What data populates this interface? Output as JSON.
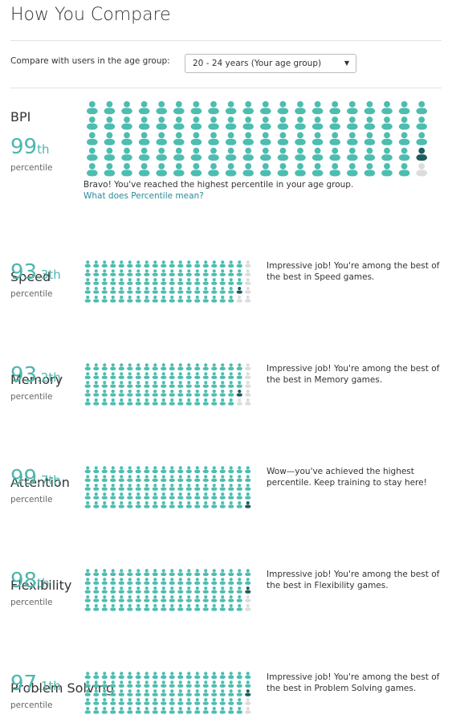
{
  "header": {
    "title": "How You Compare"
  },
  "compare": {
    "label": "Compare with users in the age group:",
    "selected": "20 - 24 years (Your age group)",
    "arrow": "▼"
  },
  "sections": [
    {
      "name": "BPI",
      "value": 99,
      "suffix": "th",
      "unit": "percentile",
      "message": "Bravo! You've reached the highest percentile in your age group.",
      "link": "What does Percentile mean?"
    },
    {
      "name": "Speed",
      "value": 93.3,
      "suffix": "th",
      "unit": "percentile",
      "message": "Impressive job! You're among the best of the best in Speed games."
    },
    {
      "name": "Memory",
      "value": 93.2,
      "suffix": "th",
      "unit": "percentile",
      "message": "Impressive job! You're among the best of the best in Memory games."
    },
    {
      "name": "Attention",
      "value": 99.7,
      "suffix": "th",
      "unit": "percentile",
      "message": "Wow—you've achieved the highest percentile. Keep training to stay here!"
    },
    {
      "name": "Flexibility",
      "value": 98,
      "suffix": "th",
      "unit": "percentile",
      "message": "Impressive job! You're among the best of the best in Flexibility games."
    },
    {
      "name": "Problem Solving",
      "value": 97.1,
      "suffix": "th",
      "unit": "percentile",
      "message": "Impressive job! You're among the best of the best in Problem Solving games."
    }
  ]
}
